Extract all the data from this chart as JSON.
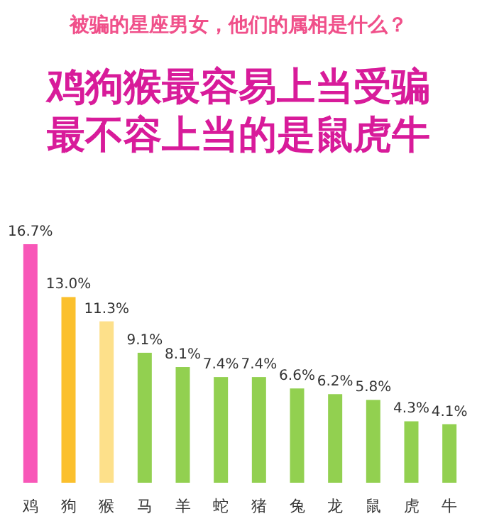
{
  "chart_data": {
    "type": "bar",
    "title": "被骗的星座男女，他们的属相是什么？",
    "subtitle": "鸡狗猴最容易上当受骗最不容上当的是鼠虎牛",
    "categories": [
      "鸡",
      "狗",
      "猴",
      "马",
      "羊",
      "蛇",
      "猪",
      "兔",
      "龙",
      "鼠",
      "虎",
      "牛"
    ],
    "values": [
      16.7,
      13.0,
      11.3,
      9.1,
      8.1,
      7.4,
      7.4,
      6.6,
      6.2,
      5.8,
      4.3,
      4.1
    ],
    "value_labels": [
      "16.7%",
      "13.0%",
      "11.3%",
      "9.1%",
      "8.1%",
      "7.4%",
      "7.4%",
      "6.6%",
      "6.2%",
      "5.8%",
      "4.3%",
      "4.1%"
    ],
    "colors": [
      "#f857b8",
      "#fbc02d",
      "#fde08a",
      "#92d050",
      "#92d050",
      "#92d050",
      "#92d050",
      "#92d050",
      "#92d050",
      "#92d050",
      "#92d050",
      "#92d050"
    ],
    "ylim": [
      0,
      16.7
    ],
    "tick_labels": "x"
  }
}
